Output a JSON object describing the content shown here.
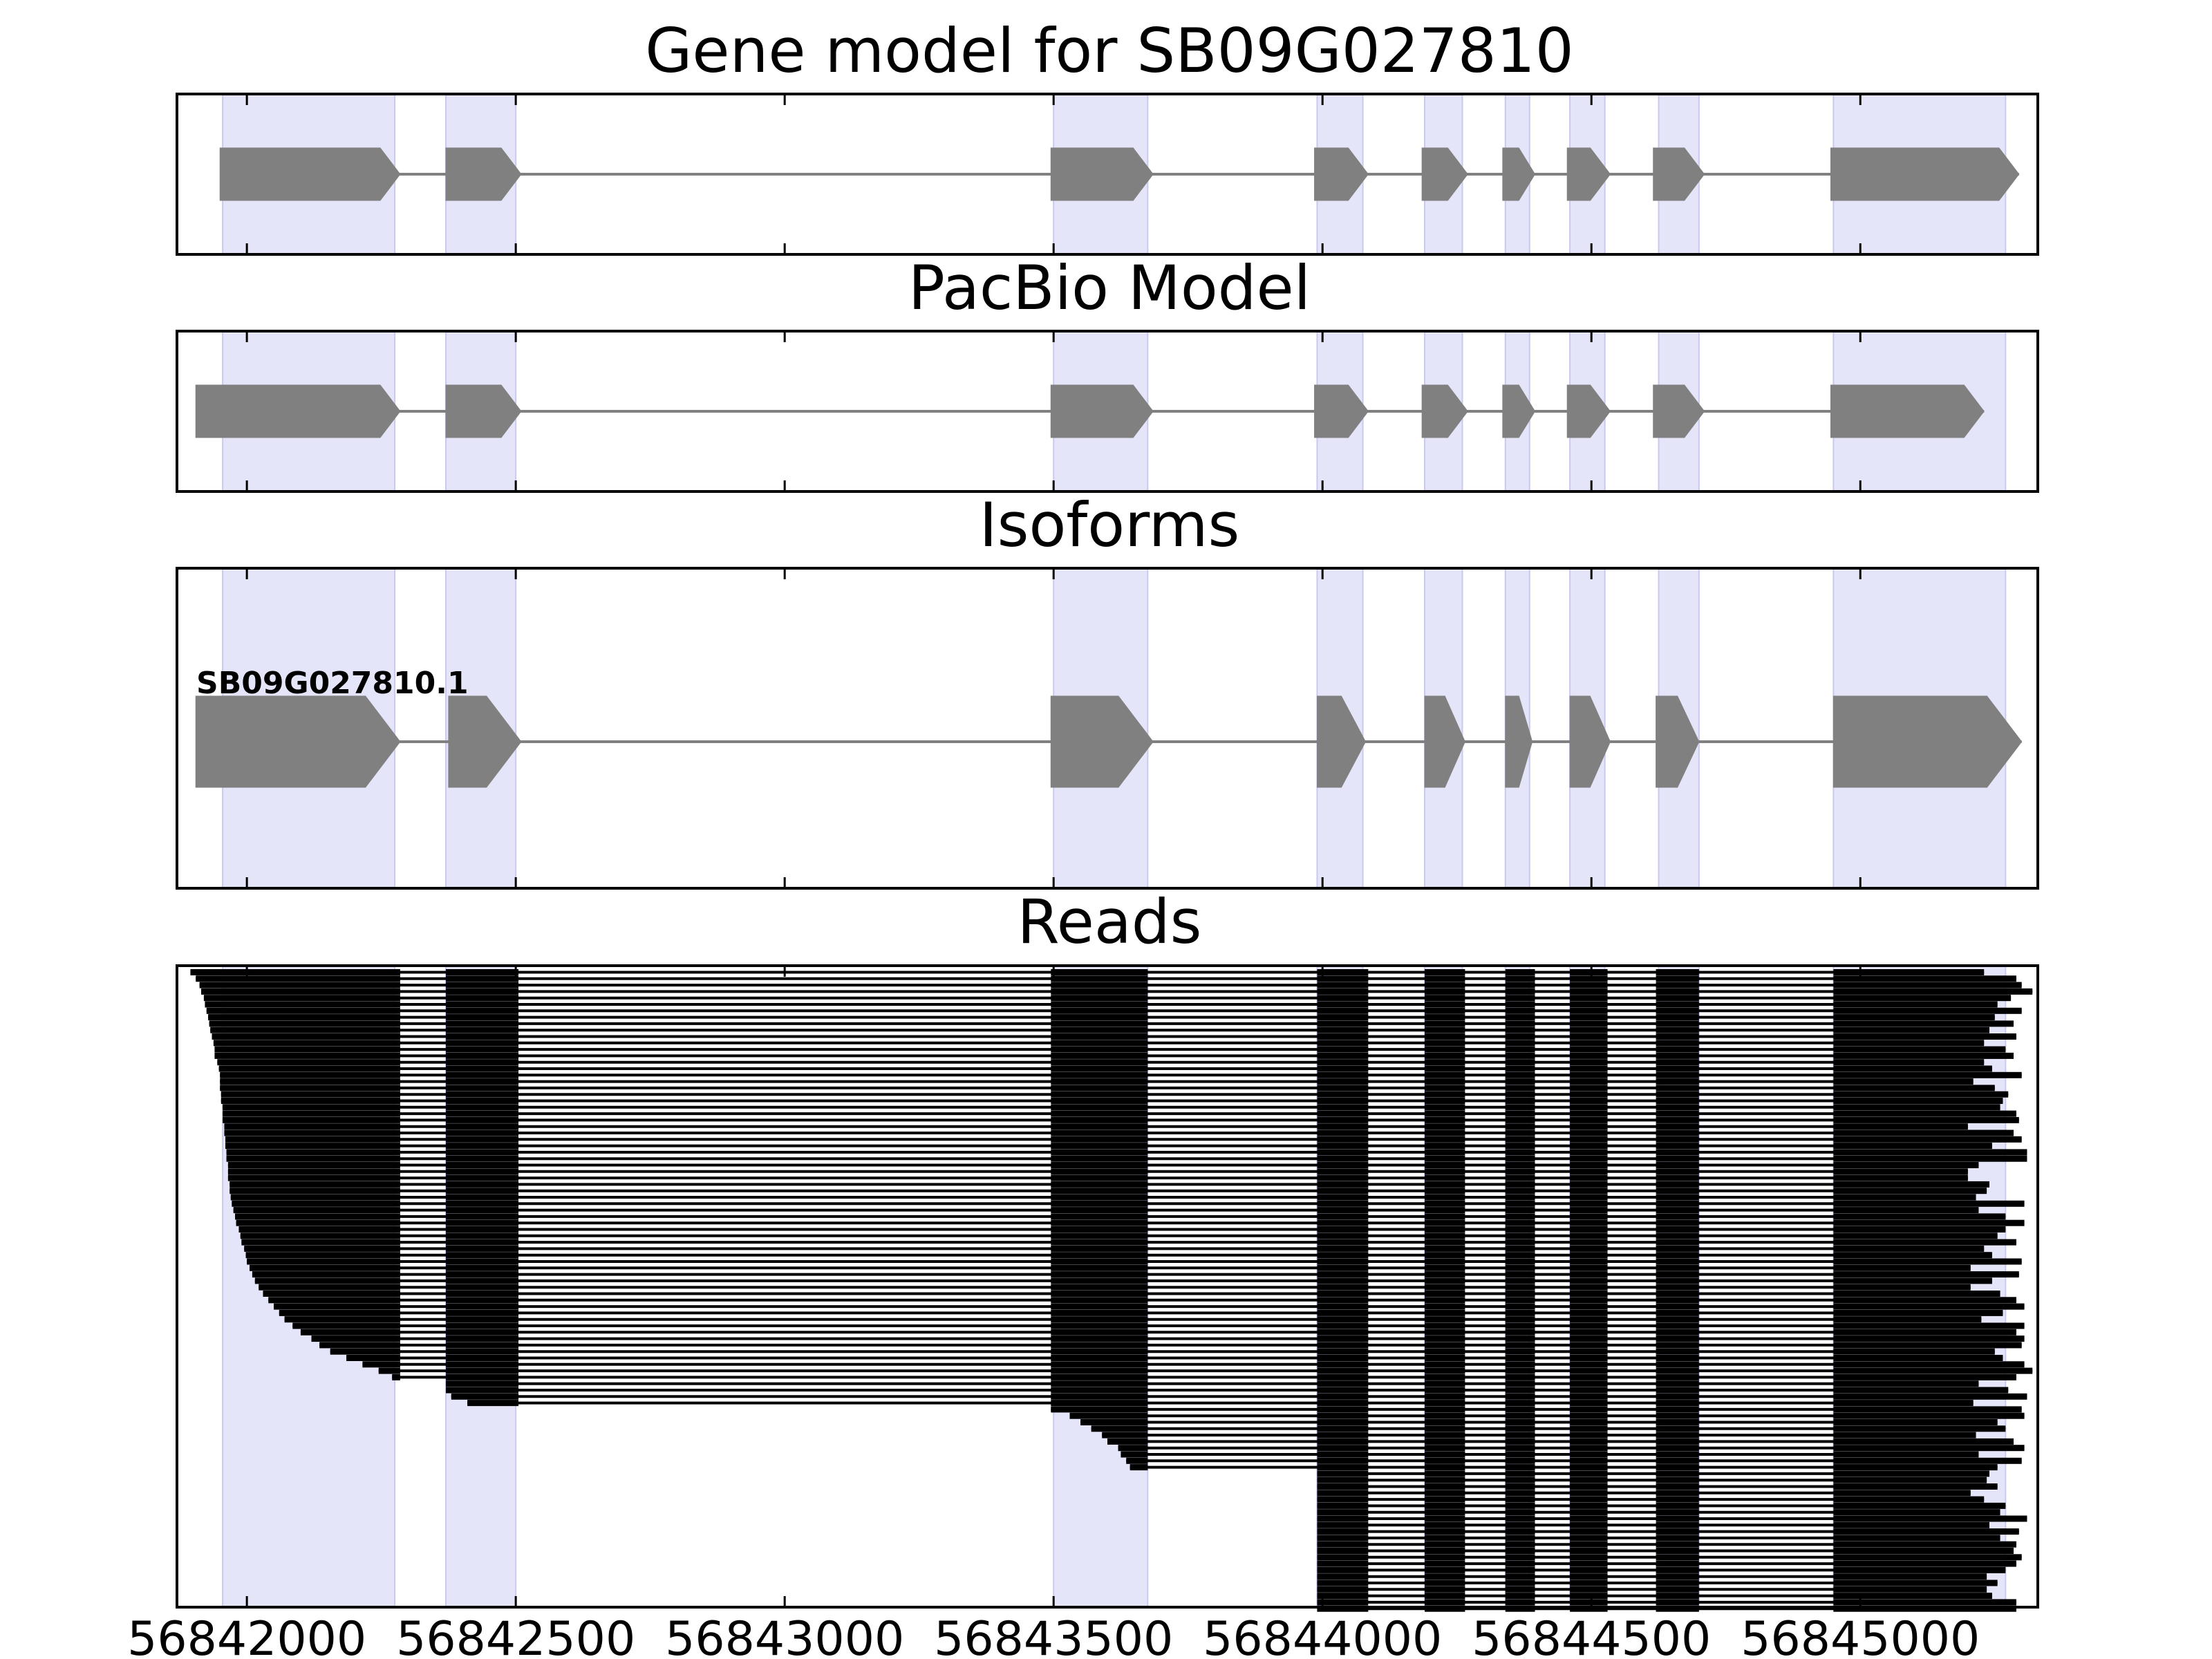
{
  "figure": {
    "panels": [
      {
        "id": "gene",
        "title": "Gene model for SB09G027810"
      },
      {
        "id": "pacbio",
        "title": "PacBio Model"
      },
      {
        "id": "isoforms",
        "title": "Isoforms"
      },
      {
        "id": "reads",
        "title": "Reads"
      }
    ]
  },
  "chart_data": {
    "type": "gene-structure",
    "xlim": [
      56841870,
      56845330
    ],
    "x_ticks": [
      56842000,
      56842500,
      56843000,
      56843500,
      56844000,
      56844500,
      56845000
    ],
    "grid": false,
    "colors": {
      "highlight": "#e5e5fa",
      "highlight_edge": "#c9c9f0",
      "feature": "#808080",
      "intron": "#808080",
      "read": "#000000",
      "frame": "#000000"
    },
    "highlight_exons": [
      [
        56841955,
        56842275
      ],
      [
        56842370,
        56842500
      ],
      [
        56843500,
        56843675
      ],
      [
        56843990,
        56844075
      ],
      [
        56844190,
        56844260
      ],
      [
        56844340,
        56844385
      ],
      [
        56844460,
        56844525
      ],
      [
        56844625,
        56844700
      ],
      [
        56844950,
        56845270
      ]
    ],
    "gene_model": {
      "exons": [
        [
          56841950,
          56842285
        ],
        [
          56842370,
          56842510
        ],
        [
          56843495,
          56843685
        ],
        [
          56843985,
          56844085
        ],
        [
          56844185,
          56844270
        ],
        [
          56844335,
          56844395
        ],
        [
          56844455,
          56844535
        ],
        [
          56844615,
          56844710
        ],
        [
          56844945,
          56845295
        ]
      ]
    },
    "pacbio_model": {
      "exons": [
        [
          56841905,
          56842285
        ],
        [
          56842370,
          56842510
        ],
        [
          56843495,
          56843685
        ],
        [
          56843985,
          56844085
        ],
        [
          56844185,
          56844270
        ],
        [
          56844335,
          56844395
        ],
        [
          56844455,
          56844535
        ],
        [
          56844615,
          56844710
        ],
        [
          56844945,
          56845230
        ]
      ]
    },
    "isoforms": [
      {
        "label": "SB09G027810.1",
        "exons": [
          [
            56841905,
            56842285
          ],
          [
            56842375,
            56842510
          ],
          [
            56843495,
            56843685
          ],
          [
            56843990,
            56844080
          ],
          [
            56844190,
            56844265
          ],
          [
            56844340,
            56844390
          ],
          [
            56844460,
            56844535
          ],
          [
            56844620,
            56844700
          ],
          [
            56844950,
            56845300
          ]
        ]
      }
    ],
    "reads": {
      "count": 100,
      "inner_exons": [
        [
          56842370,
          56842505
        ],
        [
          56843495,
          56843675
        ],
        [
          56843990,
          56844085
        ],
        [
          56844190,
          56844265
        ],
        [
          56844340,
          56844395
        ],
        [
          56844460,
          56844530
        ],
        [
          56844620,
          56844700
        ]
      ],
      "exon1_end": 56842285,
      "last_exon_start": 56844950,
      "starts": [
        56841895,
        56841905,
        56841912,
        56841915,
        56841920,
        56841922,
        56841925,
        56841928,
        56841930,
        56841932,
        56841935,
        56841938,
        56841940,
        56841940,
        56841945,
        56841948,
        56841950,
        56841950,
        56841950,
        56841952,
        56841952,
        56841955,
        56841955,
        56841955,
        56841958,
        56841958,
        56841960,
        56841960,
        56841962,
        56841962,
        56841965,
        56841965,
        56841965,
        56841968,
        56841968,
        56841970,
        56841972,
        56841975,
        56841978,
        56841980,
        56841985,
        56841988,
        56841990,
        56841995,
        56841998,
        56842000,
        56842005,
        56842010,
        56842015,
        56842022,
        56842030,
        56842040,
        56842050,
        56842060,
        56842070,
        56842085,
        56842100,
        56842120,
        56842135,
        56842155,
        56842185,
        56842215,
        56842245,
        56842270,
        56842300,
        56842370,
        56842380,
        56842410,
        56843495,
        56843530,
        56843550,
        56843570,
        56843590,
        56843600,
        56843620,
        56843625,
        56843635,
        56843642,
        56843990,
        56843990,
        56843990,
        56843990,
        56843990,
        56843990,
        56843990,
        56843990,
        56843990,
        56843990,
        56843990,
        56843990,
        56843990,
        56843990,
        56843990,
        56843990,
        56843990,
        56843990,
        56843990,
        56843990,
        56843990,
        56843990
      ],
      "ends": [
        56845230,
        56845290,
        56845300,
        56845320,
        56845280,
        56845255,
        56845300,
        56845250,
        56845285,
        56845240,
        56845290,
        56845230,
        56845270,
        56845285,
        56845230,
        56845245,
        56845300,
        56845210,
        56845250,
        56845275,
        56845265,
        56845260,
        56845290,
        56845295,
        56845200,
        56845285,
        56845300,
        56845245,
        56845310,
        56845310,
        56845220,
        56845200,
        56845200,
        56845240,
        56845235,
        56845215,
        56845305,
        56845220,
        56845270,
        56845305,
        56845270,
        56845255,
        56845290,
        56845230,
        56845245,
        56845300,
        56845205,
        56845295,
        56845245,
        56845205,
        56845260,
        56845290,
        56845305,
        56845265,
        56845225,
        56845305,
        56845290,
        56845305,
        56845300,
        56845250,
        56845265,
        56845305,
        56845320,
        56845290,
        56845220,
        56845275,
        56845310,
        56845210,
        56845300,
        56845305,
        56845255,
        56845270,
        56845215,
        56845285,
        56845305,
        56845220,
        56845300,
        56845255,
        56845240,
        56845235,
        56845255,
        56845205,
        56845230,
        56845270,
        56845260,
        56845310,
        56845240,
        56845295,
        56845260,
        56845290,
        56845285,
        56845300,
        56845290,
        56845270,
        56845235,
        56845255,
        56845235,
        56845245,
        56845290,
        56845290
      ]
    }
  }
}
